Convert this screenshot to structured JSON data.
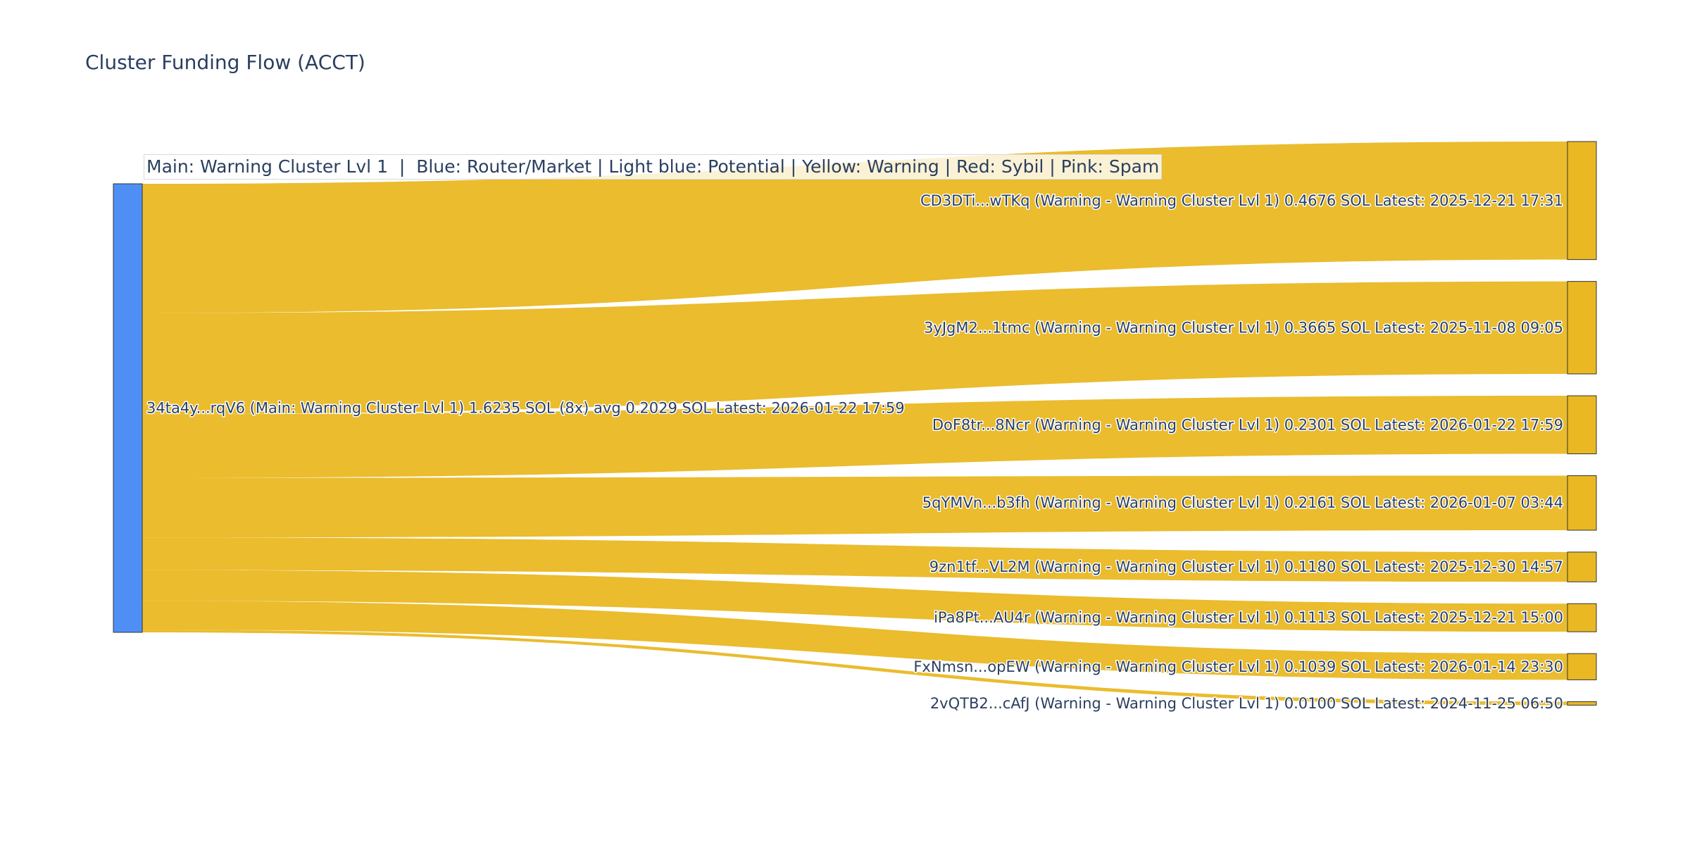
{
  "title": "Cluster Funding Flow (ACCT)",
  "legend_annotation": "Main: Warning Cluster Lvl 1  |  Blue: Router/Market | Light blue: Potential | Yellow: Warning | Red: Sybil | Pink: Spam",
  "colors": {
    "source_node": "#4f8ff5",
    "warning": "#e9b823",
    "node_border": "#333333",
    "text": "#2a3f5f"
  },
  "chart_data": {
    "type": "sankey",
    "title": "Cluster Funding Flow (ACCT)",
    "unit": "SOL",
    "source": {
      "label": "34ta4y...rqV6 (Main: Warning Cluster Lvl 1) 1.6235 SOL (8x) avg 0.2029 SOL Latest: 2026-01-22 17:59",
      "category": "Router/Market",
      "total": 1.6235
    },
    "targets": [
      {
        "label": "CD3DTi...wTKq (Warning - Warning Cluster Lvl 1) 0.4676 SOL Latest: 2025-12-21 17:31",
        "value": 0.4676,
        "category": "Warning"
      },
      {
        "label": "3yJgM2...1tmc (Warning - Warning Cluster Lvl 1) 0.3665 SOL Latest: 2025-11-08 09:05",
        "value": 0.3665,
        "category": "Warning"
      },
      {
        "label": "DoF8tr...8Ncr (Warning - Warning Cluster Lvl 1) 0.2301 SOL Latest: 2026-01-22 17:59",
        "value": 0.2301,
        "category": "Warning"
      },
      {
        "label": "5qYMVn...b3fh (Warning - Warning Cluster Lvl 1) 0.2161 SOL Latest: 2026-01-07 03:44",
        "value": 0.2161,
        "category": "Warning"
      },
      {
        "label": "9zn1tf...VL2M (Warning - Warning Cluster Lvl 1) 0.1180 SOL Latest: 2025-12-30 14:57",
        "value": 0.118,
        "category": "Warning"
      },
      {
        "label": "iPa8Pt...AU4r (Warning - Warning Cluster Lvl 1) 0.1113 SOL Latest: 2025-12-21 15:00",
        "value": 0.1113,
        "category": "Warning"
      },
      {
        "label": "FxNmsn...opEW (Warning - Warning Cluster Lvl 1) 0.1039 SOL Latest: 2026-01-14 23:30",
        "value": 0.1039,
        "category": "Warning"
      },
      {
        "label": "2vQTB2...cAfJ (Warning - Warning Cluster Lvl 1) 0.0100 SOL Latest: 2024-11-25 06:50",
        "value": 0.01,
        "category": "Warning"
      }
    ]
  }
}
